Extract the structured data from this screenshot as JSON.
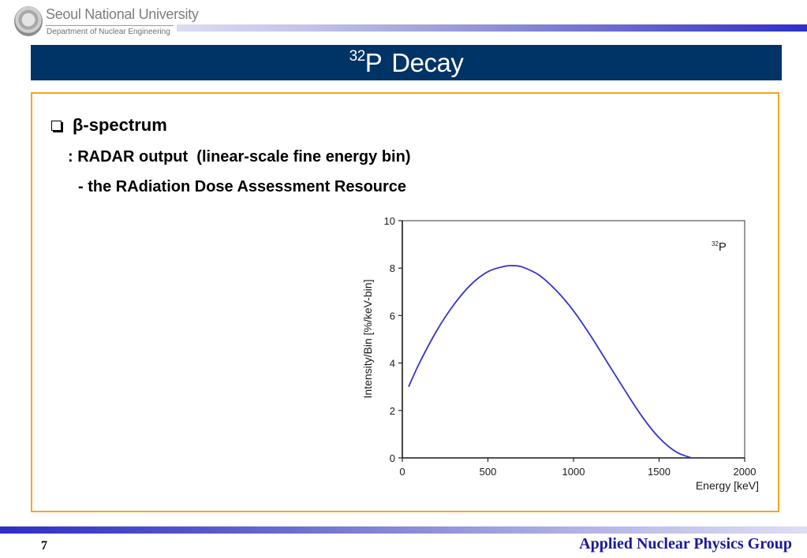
{
  "header": {
    "logo": {
      "icon": "university-emblem-icon",
      "title": "Seoul National University",
      "subtitle": "Department of Nuclear Engineering"
    }
  },
  "slide": {
    "title_superscript": "32",
    "title_symbol": "P",
    "title_rest": "Decay",
    "bullet_icon": "checkbox-square-icon",
    "heading": "β-spectrum",
    "line2": ": RADAR output  (linear-scale fine energy bin)",
    "line3": "- the RAdiation Dose Assessment Resource"
  },
  "footer": {
    "page_number": "7",
    "group_name": "Applied Nuclear Physics Group"
  },
  "colors": {
    "title_bar": "#003366",
    "content_border": "#f5a623",
    "curve": "#3333cc",
    "footer_text": "#1a1a9a"
  },
  "chart_data": {
    "type": "line",
    "title": "",
    "annotation": {
      "superscript": "32",
      "symbol": "P"
    },
    "xlabel": "Energy [keV]",
    "ylabel": "Intensity/Bin [%/keV-bin]",
    "xlim": [
      0,
      2000
    ],
    "ylim": [
      0,
      10
    ],
    "xticks": [
      0,
      500,
      1000,
      1500,
      2000
    ],
    "yticks": [
      0,
      2,
      4,
      6,
      8,
      10
    ],
    "grid": false,
    "legend": "none",
    "series": [
      {
        "name": "32P beta spectrum",
        "x": [
          37,
          100,
          200,
          300,
          400,
          500,
          600,
          650,
          700,
          800,
          900,
          1000,
          1100,
          1200,
          1300,
          1400,
          1500,
          1600,
          1690
        ],
        "y": [
          3.0,
          4.0,
          5.35,
          6.45,
          7.3,
          7.85,
          8.08,
          8.1,
          8.05,
          7.7,
          7.05,
          6.2,
          5.15,
          4.0,
          2.85,
          1.75,
          0.85,
          0.25,
          0.0
        ]
      }
    ]
  }
}
